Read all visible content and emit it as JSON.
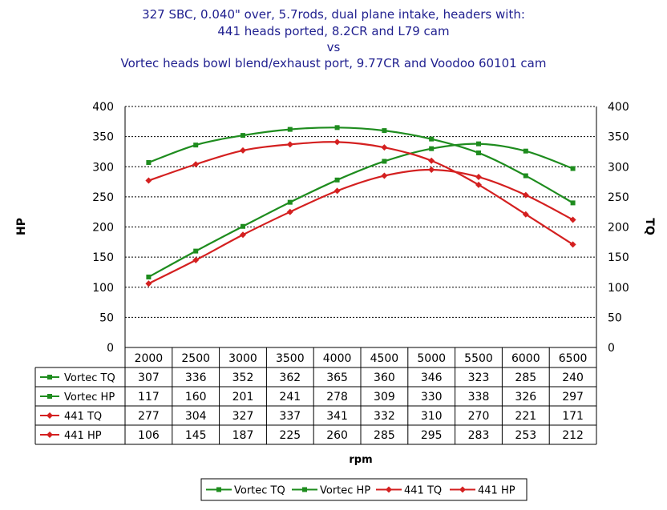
{
  "chart_data": {
    "type": "line",
    "title_lines": [
      "327 SBC, 0.040\" over, 5.7rods, dual plane intake, headers with:",
      "441 heads ported, 8.2CR and L79 cam",
      "vs",
      "Vortec heads bowl blend/exhaust port, 9.77CR and Voodoo 60101 cam"
    ],
    "xlabel": "rpm",
    "ylabel_left": "HP",
    "ylabel_right": "TQ",
    "ylim": [
      0,
      400
    ],
    "yticks": [
      0,
      50,
      100,
      150,
      200,
      250,
      300,
      350,
      400
    ],
    "grid": true,
    "legend_position": "bottom",
    "x": [
      2000,
      2500,
      3000,
      3500,
      4000,
      4500,
      5000,
      5500,
      6000,
      6500
    ],
    "series": [
      {
        "name": "Vortec TQ",
        "color": "#1e8c1e",
        "marker": "square",
        "values": [
          307,
          336,
          352,
          362,
          365,
          360,
          346,
          323,
          285,
          240
        ]
      },
      {
        "name": "Vortec HP",
        "color": "#1e8c1e",
        "marker": "square",
        "values": [
          117,
          160,
          201,
          241,
          278,
          309,
          330,
          338,
          326,
          297
        ]
      },
      {
        "name": "441 TQ",
        "color": "#d42020",
        "marker": "diamond",
        "values": [
          277,
          304,
          327,
          337,
          341,
          332,
          310,
          270,
          221,
          171
        ]
      },
      {
        "name": "441 HP",
        "color": "#d42020",
        "marker": "diamond",
        "values": [
          106,
          145,
          187,
          225,
          260,
          285,
          295,
          283,
          253,
          212
        ]
      }
    ]
  }
}
